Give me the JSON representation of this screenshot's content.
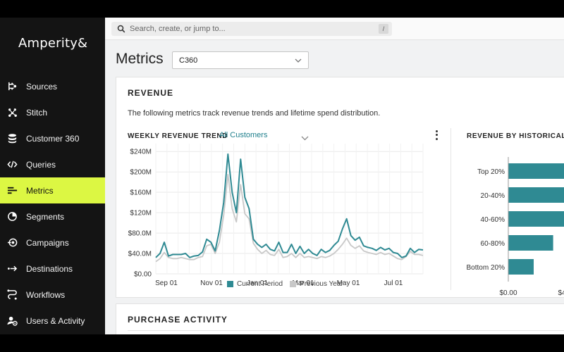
{
  "app": {
    "logo": "Amperity&"
  },
  "sidebar": {
    "items": [
      {
        "label": "Sources",
        "icon": "sources-icon",
        "active": false
      },
      {
        "label": "Stitch",
        "icon": "stitch-icon",
        "active": false
      },
      {
        "label": "Customer 360",
        "icon": "database-icon",
        "active": false
      },
      {
        "label": "Queries",
        "icon": "code-icon",
        "active": false
      },
      {
        "label": "Metrics",
        "icon": "metrics-icon",
        "active": true
      },
      {
        "label": "Segments",
        "icon": "segments-icon",
        "active": false
      },
      {
        "label": "Campaigns",
        "icon": "campaigns-icon",
        "active": false
      },
      {
        "label": "Destinations",
        "icon": "destinations-icon",
        "active": false
      },
      {
        "label": "Workflows",
        "icon": "workflows-icon",
        "active": false
      },
      {
        "label": "Users & Activity",
        "icon": "users-activity-icon",
        "active": false
      }
    ]
  },
  "topbar": {
    "search_placeholder": "Search, create, or jump to...",
    "shortcut": "/"
  },
  "page": {
    "title": "Metrics",
    "database_select": "C360"
  },
  "revenue": {
    "title": "REVENUE",
    "description": "The following metrics track revenue trends and lifetime spend distribution.",
    "weekly_trend_title": "WEEKLY REVENUE TREND",
    "segment": "All Customers",
    "historical_title": "REVENUE BY HISTORICAL LIF"
  },
  "purchase_activity": {
    "title": "PURCHASE ACTIVITY"
  },
  "colors": {
    "accent": "#dcf743",
    "current": "#2f8a93",
    "previous": "#c8c8c8",
    "sidebar": "#141414"
  },
  "chart_data": [
    {
      "type": "line",
      "title": "WEEKLY REVENUE TREND",
      "x_tick_labels": [
        "Sep 01",
        "Nov 01",
        "Jan 01",
        "Mar 01",
        "May 01",
        "Jul 01"
      ],
      "y_tick_labels": [
        "$0.00",
        "$40.0M",
        "$80.0M",
        "$120M",
        "$160M",
        "$200M",
        "$240M"
      ],
      "ylim": [
        0,
        250
      ],
      "legend_position": "bottom",
      "series": [
        {
          "name": "Current Period",
          "color": "#2f8a93",
          "values": [
            32,
            40,
            62,
            35,
            38,
            38,
            38,
            40,
            32,
            35,
            36,
            43,
            68,
            62,
            45,
            85,
            140,
            235,
            160,
            120,
            225,
            150,
            128,
            68,
            58,
            52,
            58,
            48,
            45,
            62,
            42,
            42,
            58,
            40,
            54,
            40,
            48,
            40,
            36,
            48,
            42,
            46,
            56,
            64,
            88,
            108,
            75,
            66,
            72,
            55,
            52,
            50,
            46,
            52,
            47,
            50,
            42,
            40,
            32,
            35,
            50,
            42,
            48,
            47
          ]
        },
        {
          "name": "Previous Year",
          "color": "#c8c8c8",
          "values": [
            24,
            30,
            42,
            32,
            30,
            30,
            32,
            30,
            28,
            28,
            32,
            34,
            55,
            58,
            40,
            62,
            115,
            195,
            128,
            102,
            175,
            118,
            108,
            60,
            48,
            40,
            46,
            38,
            36,
            48,
            32,
            34,
            40,
            32,
            40,
            32,
            34,
            32,
            30,
            34,
            32,
            35,
            40,
            48,
            58,
            70,
            56,
            50,
            55,
            45,
            42,
            40,
            38,
            42,
            38,
            40,
            35,
            30,
            28,
            34,
            44,
            38,
            38,
            36
          ]
        }
      ]
    },
    {
      "type": "bar",
      "orientation": "horizontal",
      "title": "REVENUE BY HISTORICAL LIF",
      "categories": [
        "Top 20%",
        "20-40%",
        "40-60%",
        "60-80%",
        "Bottom 20%"
      ],
      "values": [
        1.0,
        1.0,
        0.78,
        0.53,
        0.3
      ],
      "value_units": "fraction of visible axis",
      "x_tick_labels": [
        "$0.00",
        "$4"
      ],
      "color": "#2f8a93"
    }
  ]
}
